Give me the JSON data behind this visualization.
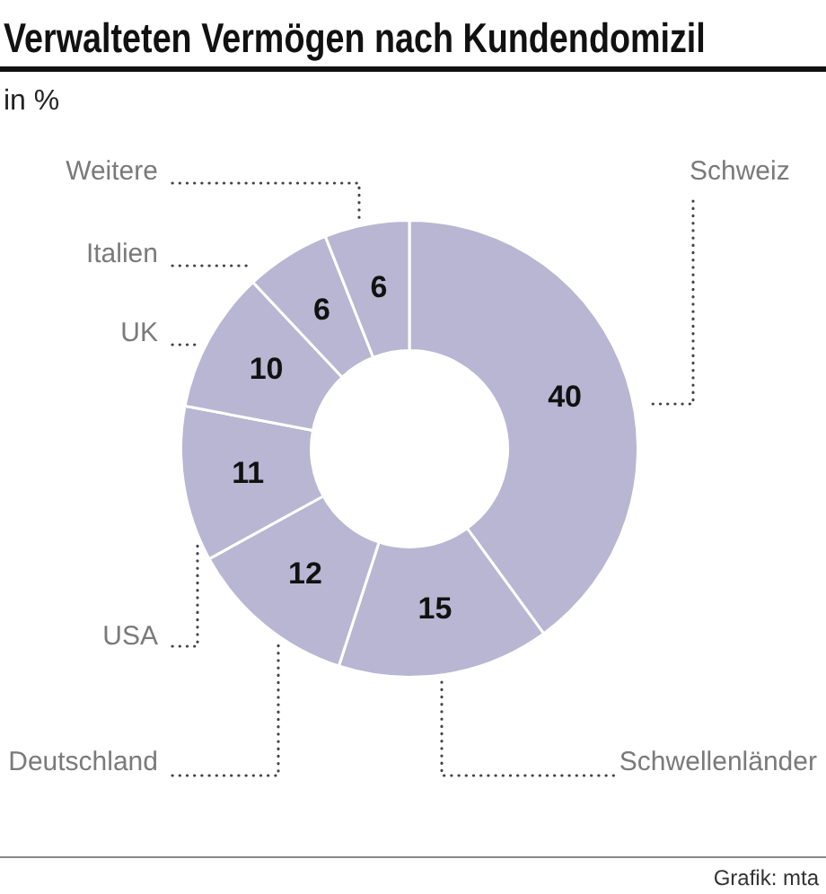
{
  "chart_data": {
    "type": "donut",
    "title": "Verwalteten Vermögen nach Kundendomizil",
    "subtitle": "in %",
    "categories": [
      "Schweiz",
      "Schwellenländer",
      "Deutschland",
      "USA",
      "UK",
      "Italien",
      "Weitere"
    ],
    "values": [
      40,
      15,
      12,
      11,
      10,
      6,
      6
    ],
    "colors": [
      "#b8b6d2",
      "#b8b6d2",
      "#b8b6d2",
      "#b8b6d2",
      "#b8b6d2",
      "#b8b6d2",
      "#b8b6d2"
    ],
    "data_labels": true,
    "annotations": [
      "Grafik: mta"
    ]
  }
}
